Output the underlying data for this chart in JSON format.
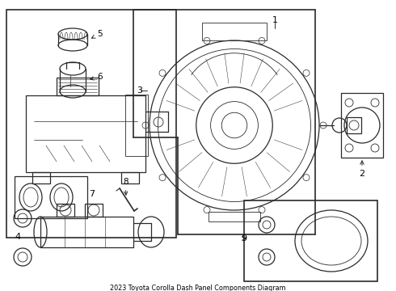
{
  "title": "2023 Toyota Corolla Dash Panel Components Diagram",
  "bg": "#ffffff",
  "lc": "#2a2a2a",
  "figsize": [
    4.9,
    3.6
  ],
  "dpi": 100
}
